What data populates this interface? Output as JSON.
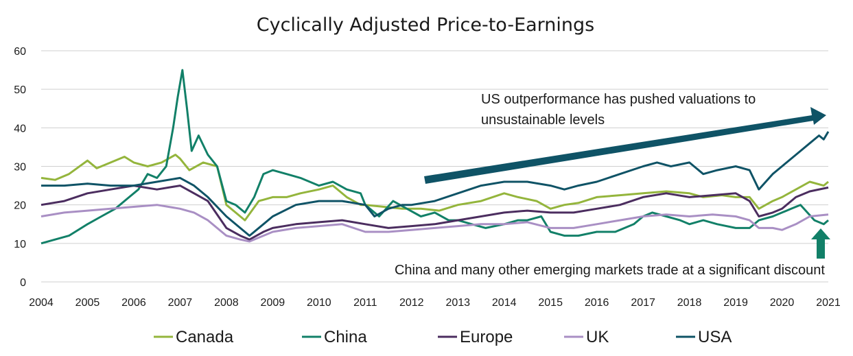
{
  "chart_data": {
    "type": "line",
    "title": "Cyclically Adjusted Price-to-Earnings",
    "xlabel": "",
    "ylabel": "",
    "ylim": [
      0,
      60
    ],
    "xlim": [
      2004,
      2021
    ],
    "yticks": [
      "0",
      "10",
      "20",
      "30",
      "40",
      "50",
      "60"
    ],
    "xticks": [
      "2004",
      "2005",
      "2006",
      "2007",
      "2008",
      "2009",
      "2010",
      "2011",
      "2012",
      "2013",
      "2014",
      "2015",
      "2016",
      "2017",
      "2018",
      "2019",
      "2020",
      "2021"
    ],
    "grid": true,
    "legend_position": "bottom",
    "annotations": [
      {
        "lines": [
          "US outperformance has pushed valuations to",
          "unsustainable levels"
        ],
        "arrow": "up-right",
        "color": "#0f5366"
      },
      {
        "lines": [
          "China and many other emerging markets trade at a significant discount"
        ],
        "arrow": "up",
        "color": "#128068"
      }
    ],
    "series": [
      {
        "name": "Canada",
        "color": "#94b53c",
        "x": [
          2004,
          2004.3,
          2004.6,
          2005,
          2005.2,
          2005.5,
          2005.8,
          2006,
          2006.3,
          2006.6,
          2006.9,
          2007,
          2007.2,
          2007.5,
          2007.8,
          2008,
          2008.2,
          2008.4,
          2008.7,
          2009,
          2009.3,
          2009.6,
          2010,
          2010.3,
          2010.6,
          2010.9,
          2011,
          2011.4,
          2011.8,
          2012.2,
          2012.6,
          2013,
          2013.5,
          2014,
          2014.3,
          2014.7,
          2015,
          2015.3,
          2015.6,
          2016,
          2016.5,
          2017,
          2017.5,
          2018,
          2018.3,
          2018.7,
          2019,
          2019.3,
          2019.5,
          2019.8,
          2020,
          2020.3,
          2020.6,
          2020.9,
          2021
        ],
        "values": [
          27,
          26.5,
          28,
          31.5,
          29.5,
          31,
          32.5,
          31,
          30,
          31,
          33,
          32,
          29,
          31,
          30,
          20,
          18,
          16,
          21,
          22,
          22,
          23,
          24,
          25,
          22,
          20,
          20,
          19.5,
          19,
          19,
          18.5,
          20,
          21,
          23,
          22,
          21,
          19,
          20,
          20.5,
          22,
          22.5,
          23,
          23.5,
          23,
          22,
          22.5,
          22,
          22,
          19,
          21,
          22,
          24,
          26,
          25,
          26
        ]
      },
      {
        "name": "China",
        "color": "#128068",
        "x": [
          2004,
          2004.3,
          2004.6,
          2005,
          2005.3,
          2005.6,
          2005.9,
          2006.1,
          2006.3,
          2006.5,
          2006.7,
          2006.85,
          2006.95,
          2007.05,
          2007.15,
          2007.25,
          2007.4,
          2007.6,
          2007.8,
          2008,
          2008.2,
          2008.4,
          2008.6,
          2008.8,
          2009,
          2009.3,
          2009.6,
          2010,
          2010.3,
          2010.6,
          2010.9,
          2011,
          2011.3,
          2011.6,
          2011.9,
          2012.2,
          2012.5,
          2012.8,
          2013,
          2013.3,
          2013.6,
          2014,
          2014.3,
          2014.5,
          2014.8,
          2015,
          2015.3,
          2015.6,
          2016,
          2016.4,
          2016.8,
          2017,
          2017.2,
          2017.5,
          2017.8,
          2018,
          2018.3,
          2018.6,
          2019,
          2019.3,
          2019.5,
          2019.8,
          2020,
          2020.2,
          2020.4,
          2020.7,
          2020.9,
          2021
        ],
        "values": [
          10,
          11,
          12,
          15,
          17,
          19,
          22,
          24,
          28,
          27,
          30,
          40,
          48,
          55,
          45,
          34,
          38,
          33,
          30,
          21,
          20,
          18,
          22,
          28,
          29,
          28,
          27,
          25,
          26,
          24,
          23,
          20,
          17,
          21,
          19,
          17,
          18,
          16,
          16,
          15,
          14,
          15,
          16,
          16,
          17,
          13,
          12,
          12,
          13,
          13,
          15,
          17,
          18,
          17,
          16,
          15,
          16,
          15,
          14,
          14,
          16,
          17,
          18,
          19,
          20,
          16,
          15,
          16
        ]
      },
      {
        "name": "Europe",
        "color": "#4b2d5f",
        "x": [
          2004,
          2004.5,
          2005,
          2005.5,
          2006,
          2006.5,
          2007,
          2007.3,
          2007.6,
          2008,
          2008.3,
          2008.5,
          2008.8,
          2009,
          2009.5,
          2010,
          2010.5,
          2011,
          2011.5,
          2012,
          2012.5,
          2013,
          2013.5,
          2014,
          2014.5,
          2015,
          2015.5,
          2016,
          2016.5,
          2017,
          2017.5,
          2018,
          2018.5,
          2019,
          2019.3,
          2019.5,
          2019.8,
          2020,
          2020.3,
          2020.6,
          2021
        ],
        "values": [
          20,
          21,
          23,
          24,
          25,
          24,
          25,
          23,
          21,
          14,
          12,
          11,
          13,
          14,
          15,
          15.5,
          16,
          15,
          14,
          14.5,
          15,
          16,
          17,
          18,
          18.5,
          18,
          18,
          19,
          20,
          22,
          23,
          22,
          22.5,
          23,
          21,
          17,
          18,
          19,
          22,
          23.5,
          24.5
        ]
      },
      {
        "name": "UK",
        "color": "#a98fc4",
        "x": [
          2004,
          2004.5,
          2005,
          2005.5,
          2006,
          2006.5,
          2007,
          2007.3,
          2007.6,
          2008,
          2008.3,
          2008.5,
          2008.8,
          2009,
          2009.5,
          2010,
          2010.5,
          2011,
          2011.5,
          2012,
          2012.5,
          2013,
          2013.5,
          2014,
          2014.5,
          2015,
          2015.5,
          2016,
          2016.5,
          2017,
          2017.5,
          2018,
          2018.5,
          2019,
          2019.3,
          2019.5,
          2019.8,
          2020,
          2020.3,
          2020.6,
          2021
        ],
        "values": [
          17,
          18,
          18.5,
          19,
          19.5,
          20,
          19,
          18,
          16,
          12,
          11,
          10.5,
          12,
          13,
          14,
          14.5,
          15,
          13,
          13,
          13.5,
          14,
          14.5,
          15,
          15,
          15.5,
          14,
          14,
          15,
          16,
          17,
          17.5,
          17,
          17.5,
          17,
          16,
          14,
          14,
          13.5,
          15,
          17,
          17.5
        ]
      },
      {
        "name": "USA",
        "color": "#0f5366",
        "x": [
          2004,
          2004.5,
          2005,
          2005.5,
          2006,
          2006.5,
          2007,
          2007.3,
          2007.6,
          2008,
          2008.3,
          2008.5,
          2008.8,
          2009,
          2009.5,
          2010,
          2010.5,
          2011,
          2011.2,
          2011.5,
          2011.8,
          2012,
          2012.5,
          2013,
          2013.5,
          2014,
          2014.5,
          2015,
          2015.3,
          2015.6,
          2016,
          2016.5,
          2017,
          2017.3,
          2017.6,
          2018,
          2018.3,
          2018.6,
          2019,
          2019.3,
          2019.5,
          2019.8,
          2020,
          2020.3,
          2020.6,
          2020.8,
          2020.9,
          2021
        ],
        "values": [
          25,
          25,
          25.5,
          25,
          25,
          26,
          27,
          25,
          22,
          17,
          14,
          12,
          15,
          17,
          20,
          21,
          21,
          20,
          17,
          19,
          20,
          20,
          21,
          23,
          25,
          26,
          26,
          25,
          24,
          25,
          26,
          28,
          30,
          31,
          30,
          31,
          28,
          29,
          30,
          29,
          24,
          28,
          30,
          33,
          36,
          38,
          37,
          39
        ]
      }
    ]
  }
}
